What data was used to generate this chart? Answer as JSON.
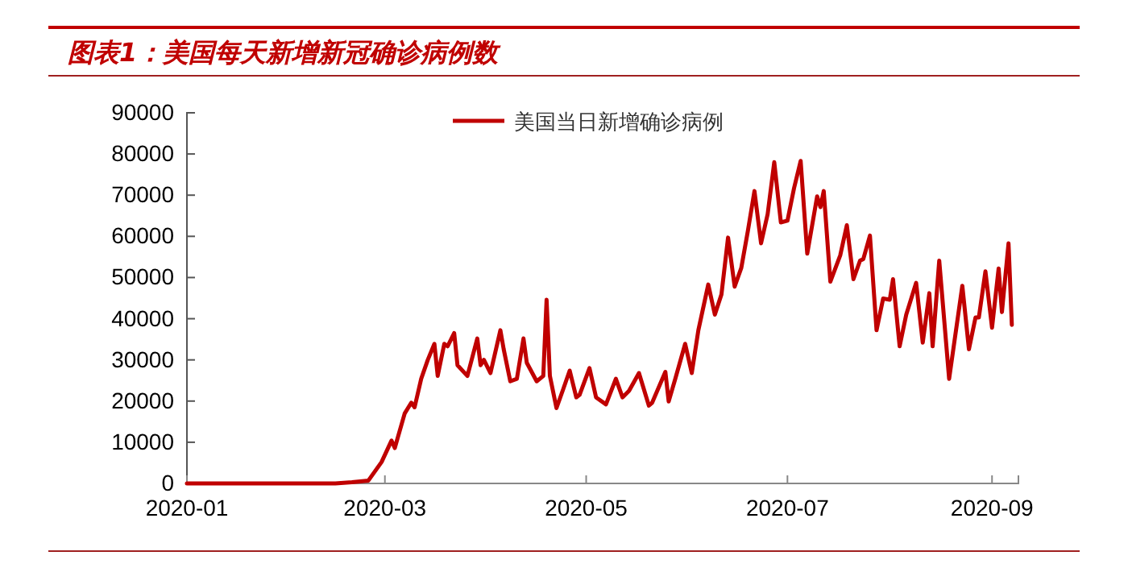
{
  "chart_data": {
    "type": "line",
    "title": "图表1：美国每天新增新冠确诊病例数",
    "x": [
      "2020-01-01",
      "2020-02-15",
      "2020-02-20",
      "2020-02-25",
      "2020-02-29",
      "2020-03-03",
      "2020-03-04",
      "2020-03-07",
      "2020-03-09",
      "2020-03-10",
      "2020-03-12",
      "2020-03-14",
      "2020-03-16",
      "2020-03-17",
      "2020-03-19",
      "2020-03-20",
      "2020-03-22",
      "2020-03-23",
      "2020-03-26",
      "2020-03-29",
      "2020-03-30",
      "2020-03-31",
      "2020-04-02",
      "2020-04-05",
      "2020-04-06",
      "2020-04-08",
      "2020-04-10",
      "2020-04-12",
      "2020-04-13",
      "2020-04-16",
      "2020-04-18",
      "2020-04-19",
      "2020-04-20",
      "2020-04-22",
      "2020-04-24",
      "2020-04-26",
      "2020-04-28",
      "2020-04-29",
      "2020-05-02",
      "2020-05-04",
      "2020-05-07",
      "2020-05-10",
      "2020-05-12",
      "2020-05-14",
      "2020-05-17",
      "2020-05-20",
      "2020-05-21",
      "2020-05-25",
      "2020-05-26",
      "2020-05-28",
      "2020-05-31",
      "2020-06-02",
      "2020-06-04",
      "2020-06-07",
      "2020-06-09",
      "2020-06-11",
      "2020-06-13",
      "2020-06-15",
      "2020-06-17",
      "2020-06-19",
      "2020-06-21",
      "2020-06-23",
      "2020-06-25",
      "2020-06-27",
      "2020-06-29",
      "2020-07-01",
      "2020-07-03",
      "2020-07-05",
      "2020-07-07",
      "2020-07-10",
      "2020-07-11",
      "2020-07-12",
      "2020-07-14",
      "2020-07-17",
      "2020-07-19",
      "2020-07-21",
      "2020-07-23",
      "2020-07-24",
      "2020-07-26",
      "2020-07-28",
      "2020-07-30",
      "2020-08-01",
      "2020-08-02",
      "2020-08-04",
      "2020-08-06",
      "2020-08-09",
      "2020-08-11",
      "2020-08-13",
      "2020-08-14",
      "2020-08-16",
      "2020-08-19",
      "2020-08-23",
      "2020-08-25",
      "2020-08-27",
      "2020-08-28",
      "2020-08-30",
      "2020-09-01",
      "2020-09-03",
      "2020-09-04",
      "2020-09-06",
      "2020-09-07"
    ],
    "series": [
      {
        "name": "美国当日新增确诊病例",
        "color": "#c00000",
        "values": [
          0,
          0,
          300,
          700,
          5200,
          10400,
          8600,
          17000,
          19600,
          18500,
          25400,
          30000,
          33900,
          26100,
          33900,
          33300,
          36500,
          28700,
          26100,
          35200,
          28700,
          30000,
          26800,
          37200,
          32600,
          24800,
          25400,
          35200,
          29300,
          24800,
          26100,
          44600,
          26100,
          18300,
          22800,
          27400,
          20900,
          21500,
          28000,
          20900,
          19200,
          25400,
          20900,
          22500,
          26800,
          18900,
          19600,
          27100,
          19900,
          25400,
          33900,
          26800,
          37200,
          48300,
          41000,
          45900,
          59700,
          47800,
          52300,
          61300,
          71000,
          58300,
          65400,
          78000,
          63400,
          63800,
          71700,
          78300,
          55800,
          69700,
          67100,
          71000,
          49000,
          55400,
          62700,
          49600,
          54100,
          54500,
          60200,
          37200,
          44900,
          44600,
          49600,
          33300,
          41000,
          48700,
          34200,
          46200,
          33300,
          54100,
          25400,
          48000,
          32600,
          40300,
          40300,
          51500,
          37800,
          52200,
          41600,
          58300,
          38500
        ]
      }
    ],
    "xlim": [
      "2020-01-01",
      "2020-09-09"
    ],
    "xticks": [
      "2020-01",
      "2020-03",
      "2020-05",
      "2020-07",
      "2020-09"
    ],
    "ylim": [
      0,
      90000
    ],
    "yticks": [
      0,
      10000,
      20000,
      30000,
      40000,
      50000,
      60000,
      70000,
      80000,
      90000
    ],
    "legend": "top",
    "grid": false
  }
}
